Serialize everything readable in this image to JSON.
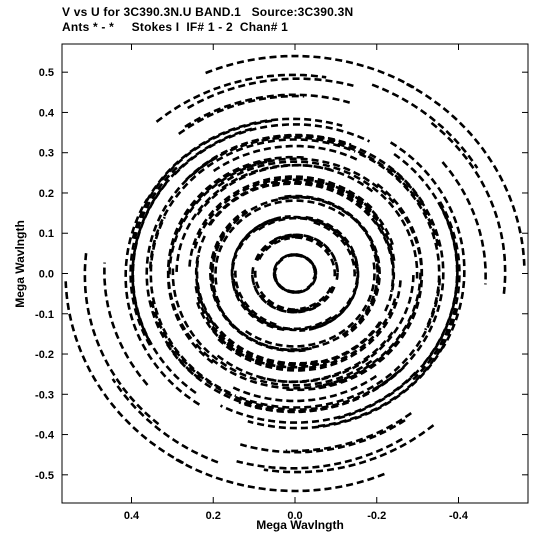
{
  "header": {
    "line1": "V vs U for 3C390.3N.U BAND.1   Source:3C390.3N",
    "line2": "Ants * - *     Stokes I  IF# 1 - 2  Chan# 1"
  },
  "chart_data": {
    "type": "scatter",
    "title": "V vs U for 3C390.3N.U BAND.1   Source:3C390.3N",
    "subtitle": "Ants * - *     Stokes I  IF# 1 - 2  Chan# 1",
    "xlabel": "Mega Wavlngth",
    "ylabel": "Mega Wavlngth",
    "xlim": [
      0.57,
      -0.57
    ],
    "ylim": [
      -0.57,
      0.57
    ],
    "x_reversed": true,
    "xticks": [
      "0.4",
      "0.2",
      "0.0",
      "-0.2",
      "-0.4"
    ],
    "xtick_values": [
      0.4,
      0.2,
      0.0,
      -0.2,
      -0.4
    ],
    "yticks": [
      "0.5",
      "0.4",
      "0.3",
      "0.2",
      "0.1",
      "0.0",
      "-0.1",
      "-0.2",
      "-0.3",
      "-0.4",
      "-0.5"
    ],
    "ytick_values": [
      0.5,
      0.4,
      0.3,
      0.2,
      0.1,
      0.0,
      -0.1,
      -0.2,
      -0.3,
      -0.4,
      -0.5
    ],
    "grid": false,
    "marker": "dash",
    "color": "#000000",
    "uv_tracks": [
      {
        "radius": 0.55,
        "ellipticity": 0.96,
        "coverage": "partial arcs"
      },
      {
        "radius": 0.5,
        "ellipticity": 0.95,
        "coverage": "partial arcs"
      },
      {
        "radius": 0.45,
        "ellipticity": 0.95,
        "coverage": "partial arcs"
      },
      {
        "radius": 0.4,
        "ellipticity": 0.94,
        "coverage": "dense"
      },
      {
        "radius": 0.35,
        "ellipticity": 0.94,
        "coverage": "dense"
      },
      {
        "radius": 0.3,
        "ellipticity": 0.93,
        "coverage": "dense"
      },
      {
        "radius": 0.25,
        "ellipticity": 0.93,
        "coverage": "dense"
      },
      {
        "radius": 0.2,
        "ellipticity": 0.93,
        "coverage": "dense"
      },
      {
        "radius": 0.15,
        "ellipticity": 0.92,
        "coverage": "dense"
      },
      {
        "radius": 0.1,
        "ellipticity": 0.92,
        "coverage": "dense"
      },
      {
        "radius": 0.05,
        "ellipticity": 0.92,
        "coverage": "dense"
      }
    ]
  }
}
